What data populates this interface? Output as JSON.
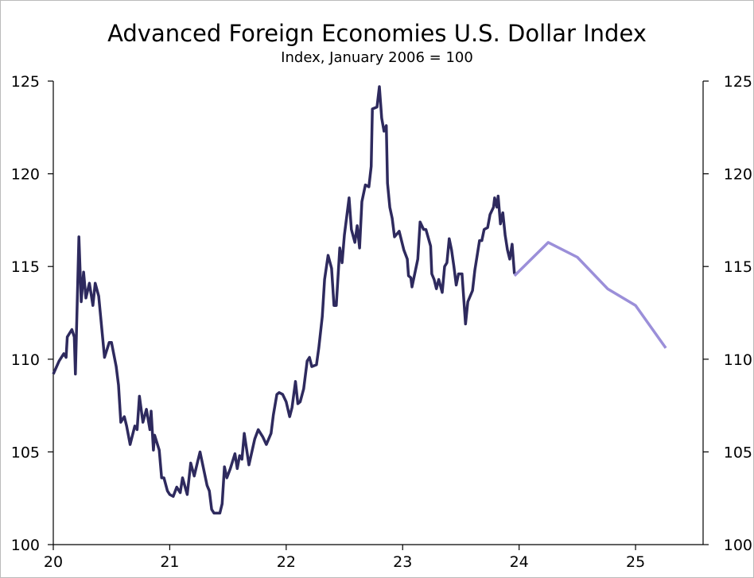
{
  "chart_data": {
    "type": "line",
    "title": "Advanced Foreign Economies U.S. Dollar Index",
    "subtitle": "Index, January 2006 = 100",
    "xlim": [
      20,
      25.58
    ],
    "xticks": [
      20,
      21,
      22,
      23,
      24,
      25
    ],
    "ylim": [
      100,
      125
    ],
    "yticks": [
      100,
      105,
      110,
      115,
      120,
      125
    ],
    "series": [
      {
        "color": "#2e2a5e",
        "x": [
          20.0,
          20.05,
          20.09,
          20.11,
          20.12,
          20.16,
          20.18,
          20.19,
          20.22,
          20.24,
          20.26,
          20.28,
          20.31,
          20.34,
          20.36,
          20.39,
          20.44,
          20.48,
          20.5,
          20.54,
          20.56,
          20.58,
          20.61,
          20.63,
          20.66,
          20.7,
          20.72,
          20.74,
          20.77,
          20.8,
          20.83,
          20.84,
          20.86,
          20.87,
          20.91,
          20.93,
          20.95,
          20.98,
          21.0,
          21.03,
          21.06,
          21.09,
          21.11,
          21.15,
          21.18,
          21.21,
          21.24,
          21.26,
          21.29,
          21.32,
          21.34,
          21.36,
          21.38,
          21.43,
          21.45,
          21.47,
          21.49,
          21.52,
          21.56,
          21.58,
          21.6,
          21.62,
          21.64,
          21.68,
          21.73,
          21.76,
          21.8,
          21.83,
          21.87,
          21.89,
          21.92,
          21.94,
          21.97,
          22.0,
          22.03,
          22.05,
          22.08,
          22.1,
          22.12,
          22.15,
          22.18,
          22.2,
          22.22,
          22.26,
          22.28,
          22.31,
          22.33,
          22.36,
          22.39,
          22.41,
          22.43,
          22.46,
          22.48,
          22.5,
          22.54,
          22.56,
          22.59,
          22.61,
          22.63,
          22.65,
          22.68,
          22.71,
          22.73,
          22.74,
          22.78,
          22.8,
          22.82,
          22.84,
          22.86,
          22.87,
          22.89,
          22.91,
          22.93,
          22.97,
          23.01,
          23.04,
          23.05,
          23.07,
          23.08,
          23.13,
          23.15,
          23.18,
          23.2,
          23.24,
          23.25,
          23.27,
          23.29,
          23.31,
          23.34,
          23.36,
          23.38,
          23.4,
          23.42,
          23.44,
          23.46,
          23.48,
          23.51,
          23.54,
          23.56,
          23.6,
          23.62,
          23.66,
          23.68,
          23.7,
          23.73,
          23.75,
          23.78,
          23.79,
          23.81,
          23.82,
          23.84,
          23.86,
          23.88,
          23.9,
          23.92,
          23.94,
          23.96
        ],
        "values": [
          109.2,
          109.9,
          110.3,
          110.1,
          111.2,
          111.6,
          111.2,
          109.2,
          116.6,
          113.1,
          114.7,
          113.3,
          114.1,
          112.9,
          114.1,
          113.4,
          110.1,
          110.9,
          110.9,
          109.6,
          108.6,
          106.6,
          106.9,
          106.4,
          105.4,
          106.4,
          106.2,
          108.0,
          106.6,
          107.3,
          106.2,
          107.2,
          105.1,
          105.9,
          105.1,
          103.6,
          103.6,
          102.9,
          102.7,
          102.6,
          103.1,
          102.8,
          103.6,
          102.7,
          104.4,
          103.7,
          104.5,
          105.0,
          104.1,
          103.2,
          102.9,
          101.9,
          101.7,
          101.7,
          102.2,
          104.2,
          103.6,
          104.1,
          104.9,
          104.1,
          104.8,
          104.6,
          106.0,
          104.3,
          105.7,
          106.2,
          105.8,
          105.4,
          106.0,
          107.0,
          108.1,
          108.2,
          108.1,
          107.7,
          106.9,
          107.4,
          108.8,
          107.6,
          107.7,
          108.4,
          109.9,
          110.1,
          109.6,
          109.7,
          110.6,
          112.3,
          114.3,
          115.6,
          114.9,
          112.9,
          112.9,
          116.0,
          115.2,
          116.7,
          118.7,
          117.0,
          116.3,
          117.2,
          116.0,
          118.5,
          119.4,
          119.3,
          120.4,
          123.5,
          123.6,
          124.7,
          123.0,
          122.3,
          122.6,
          119.5,
          118.2,
          117.6,
          116.6,
          116.9,
          115.9,
          115.4,
          114.5,
          114.4,
          113.9,
          115.4,
          117.4,
          117.0,
          117.0,
          116.1,
          114.6,
          114.3,
          113.8,
          114.3,
          113.6,
          115.0,
          115.2,
          116.5,
          115.9,
          115.0,
          114.0,
          114.6,
          114.6,
          111.9,
          113.1,
          113.7,
          114.8,
          116.4,
          116.4,
          117.0,
          117.1,
          117.8,
          118.2,
          118.7,
          118.2,
          118.8,
          117.3,
          117.9,
          116.7,
          115.9,
          115.4,
          116.2,
          114.6
        ]
      },
      {
        "color": "#9b8fd9",
        "x": [
          23.96,
          24.25,
          24.5,
          24.76,
          25.0,
          25.26
        ],
        "values": [
          114.5,
          116.3,
          115.5,
          113.8,
          112.9,
          110.6
        ]
      }
    ]
  }
}
